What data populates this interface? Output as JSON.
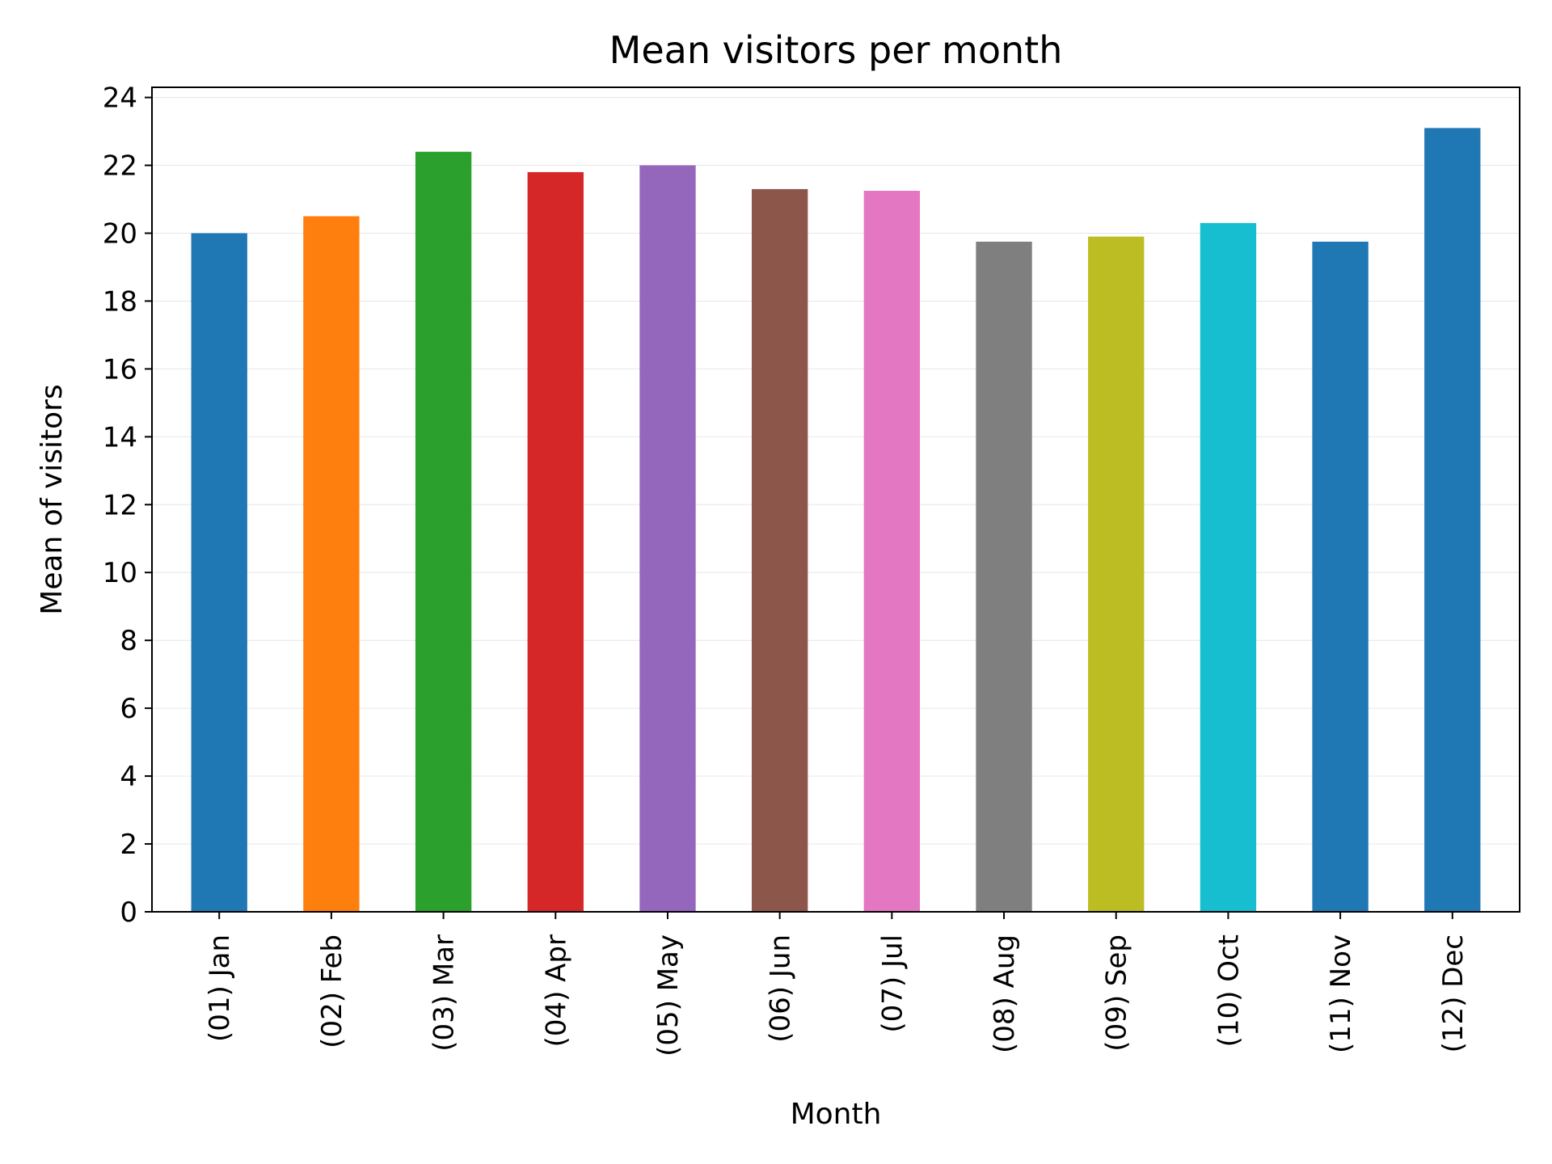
{
  "chart_data": {
    "type": "bar",
    "title": "Mean visitors per month",
    "xlabel": "Month",
    "ylabel": "Mean of visitors",
    "categories": [
      "(01) Jan",
      "(02) Feb",
      "(03) Mar",
      "(04) Apr",
      "(05) May",
      "(06) Jun",
      "(07) Jul",
      "(08) Aug",
      "(09) Sep",
      "(10) Oct",
      "(11) Nov",
      "(12) Dec"
    ],
    "values": [
      20.0,
      20.5,
      22.4,
      21.8,
      22.0,
      21.3,
      21.25,
      19.75,
      19.9,
      20.3,
      19.75,
      23.1
    ],
    "colors": [
      "#1f77b4",
      "#ff7f0e",
      "#2ca02c",
      "#d62728",
      "#9467bd",
      "#8c564b",
      "#e377c2",
      "#7f7f7f",
      "#bcbd22",
      "#17becf",
      "#1f77b4",
      "#1f77b4"
    ],
    "ylim": [
      0,
      24.3
    ],
    "yticks": [
      0,
      2,
      4,
      6,
      8,
      10,
      12,
      14,
      16,
      18,
      20,
      22,
      24
    ],
    "grid": "horizontal",
    "legend": "none"
  }
}
